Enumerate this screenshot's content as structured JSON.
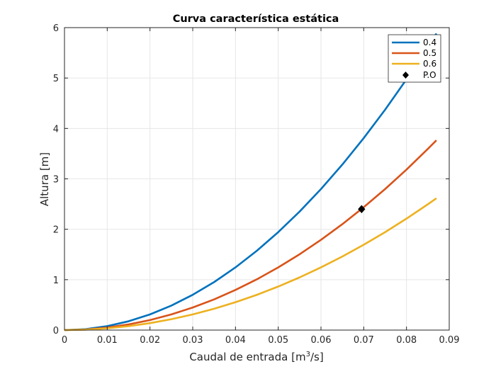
{
  "chart_data": {
    "type": "line",
    "title": "Curva característica estática",
    "xlabel_main": "Caudal de entrada [m",
    "xlabel_sup": "3",
    "xlabel_tail": "/s]",
    "ylabel": "Altura [m]",
    "xlim": [
      0,
      0.09
    ],
    "ylim": [
      0,
      6
    ],
    "x_ticks": [
      0,
      0.01,
      0.02,
      0.03,
      0.04,
      0.05,
      0.06,
      0.07,
      0.08,
      0.09
    ],
    "x_tick_labels": [
      "0",
      "0.01",
      "0.02",
      "0.03",
      "0.04",
      "0.05",
      "0.06",
      "0.07",
      "0.08",
      "0.09"
    ],
    "y_ticks": [
      0,
      1,
      2,
      3,
      4,
      5,
      6
    ],
    "y_tick_labels": [
      "0",
      "1",
      "2",
      "3",
      "4",
      "5",
      "6"
    ],
    "grid": true,
    "legend_position": "top-right",
    "x": [
      0,
      0.005,
      0.01,
      0.015,
      0.02,
      0.025,
      0.03,
      0.035,
      0.04,
      0.045,
      0.05,
      0.055,
      0.06,
      0.065,
      0.07,
      0.075,
      0.08,
      0.085,
      0.087
    ],
    "series": [
      {
        "name": "0.4",
        "color": "#0072BD",
        "values": [
          0,
          0.019,
          0.078,
          0.175,
          0.311,
          0.486,
          0.7,
          0.952,
          1.244,
          1.574,
          1.943,
          2.351,
          2.798,
          3.284,
          3.809,
          4.372,
          4.974,
          5.616,
          5.883
        ]
      },
      {
        "name": "0.5",
        "color": "#D95319",
        "values": [
          0,
          0.012,
          0.05,
          0.112,
          0.199,
          0.311,
          0.448,
          0.609,
          0.796,
          1.007,
          1.244,
          1.504,
          1.791,
          2.101,
          2.438,
          2.798,
          3.184,
          3.594,
          3.765
        ]
      },
      {
        "name": "0.6",
        "color": "#EDB120",
        "values": [
          0,
          0.0086,
          0.035,
          0.078,
          0.138,
          0.216,
          0.311,
          0.423,
          0.553,
          0.699,
          0.864,
          1.045,
          1.244,
          1.46,
          1.693,
          1.943,
          2.211,
          2.496,
          2.614
        ]
      }
    ],
    "operating_point": {
      "name": "P.O",
      "x": 0.0695,
      "y": 2.4,
      "color": "#000000"
    }
  }
}
